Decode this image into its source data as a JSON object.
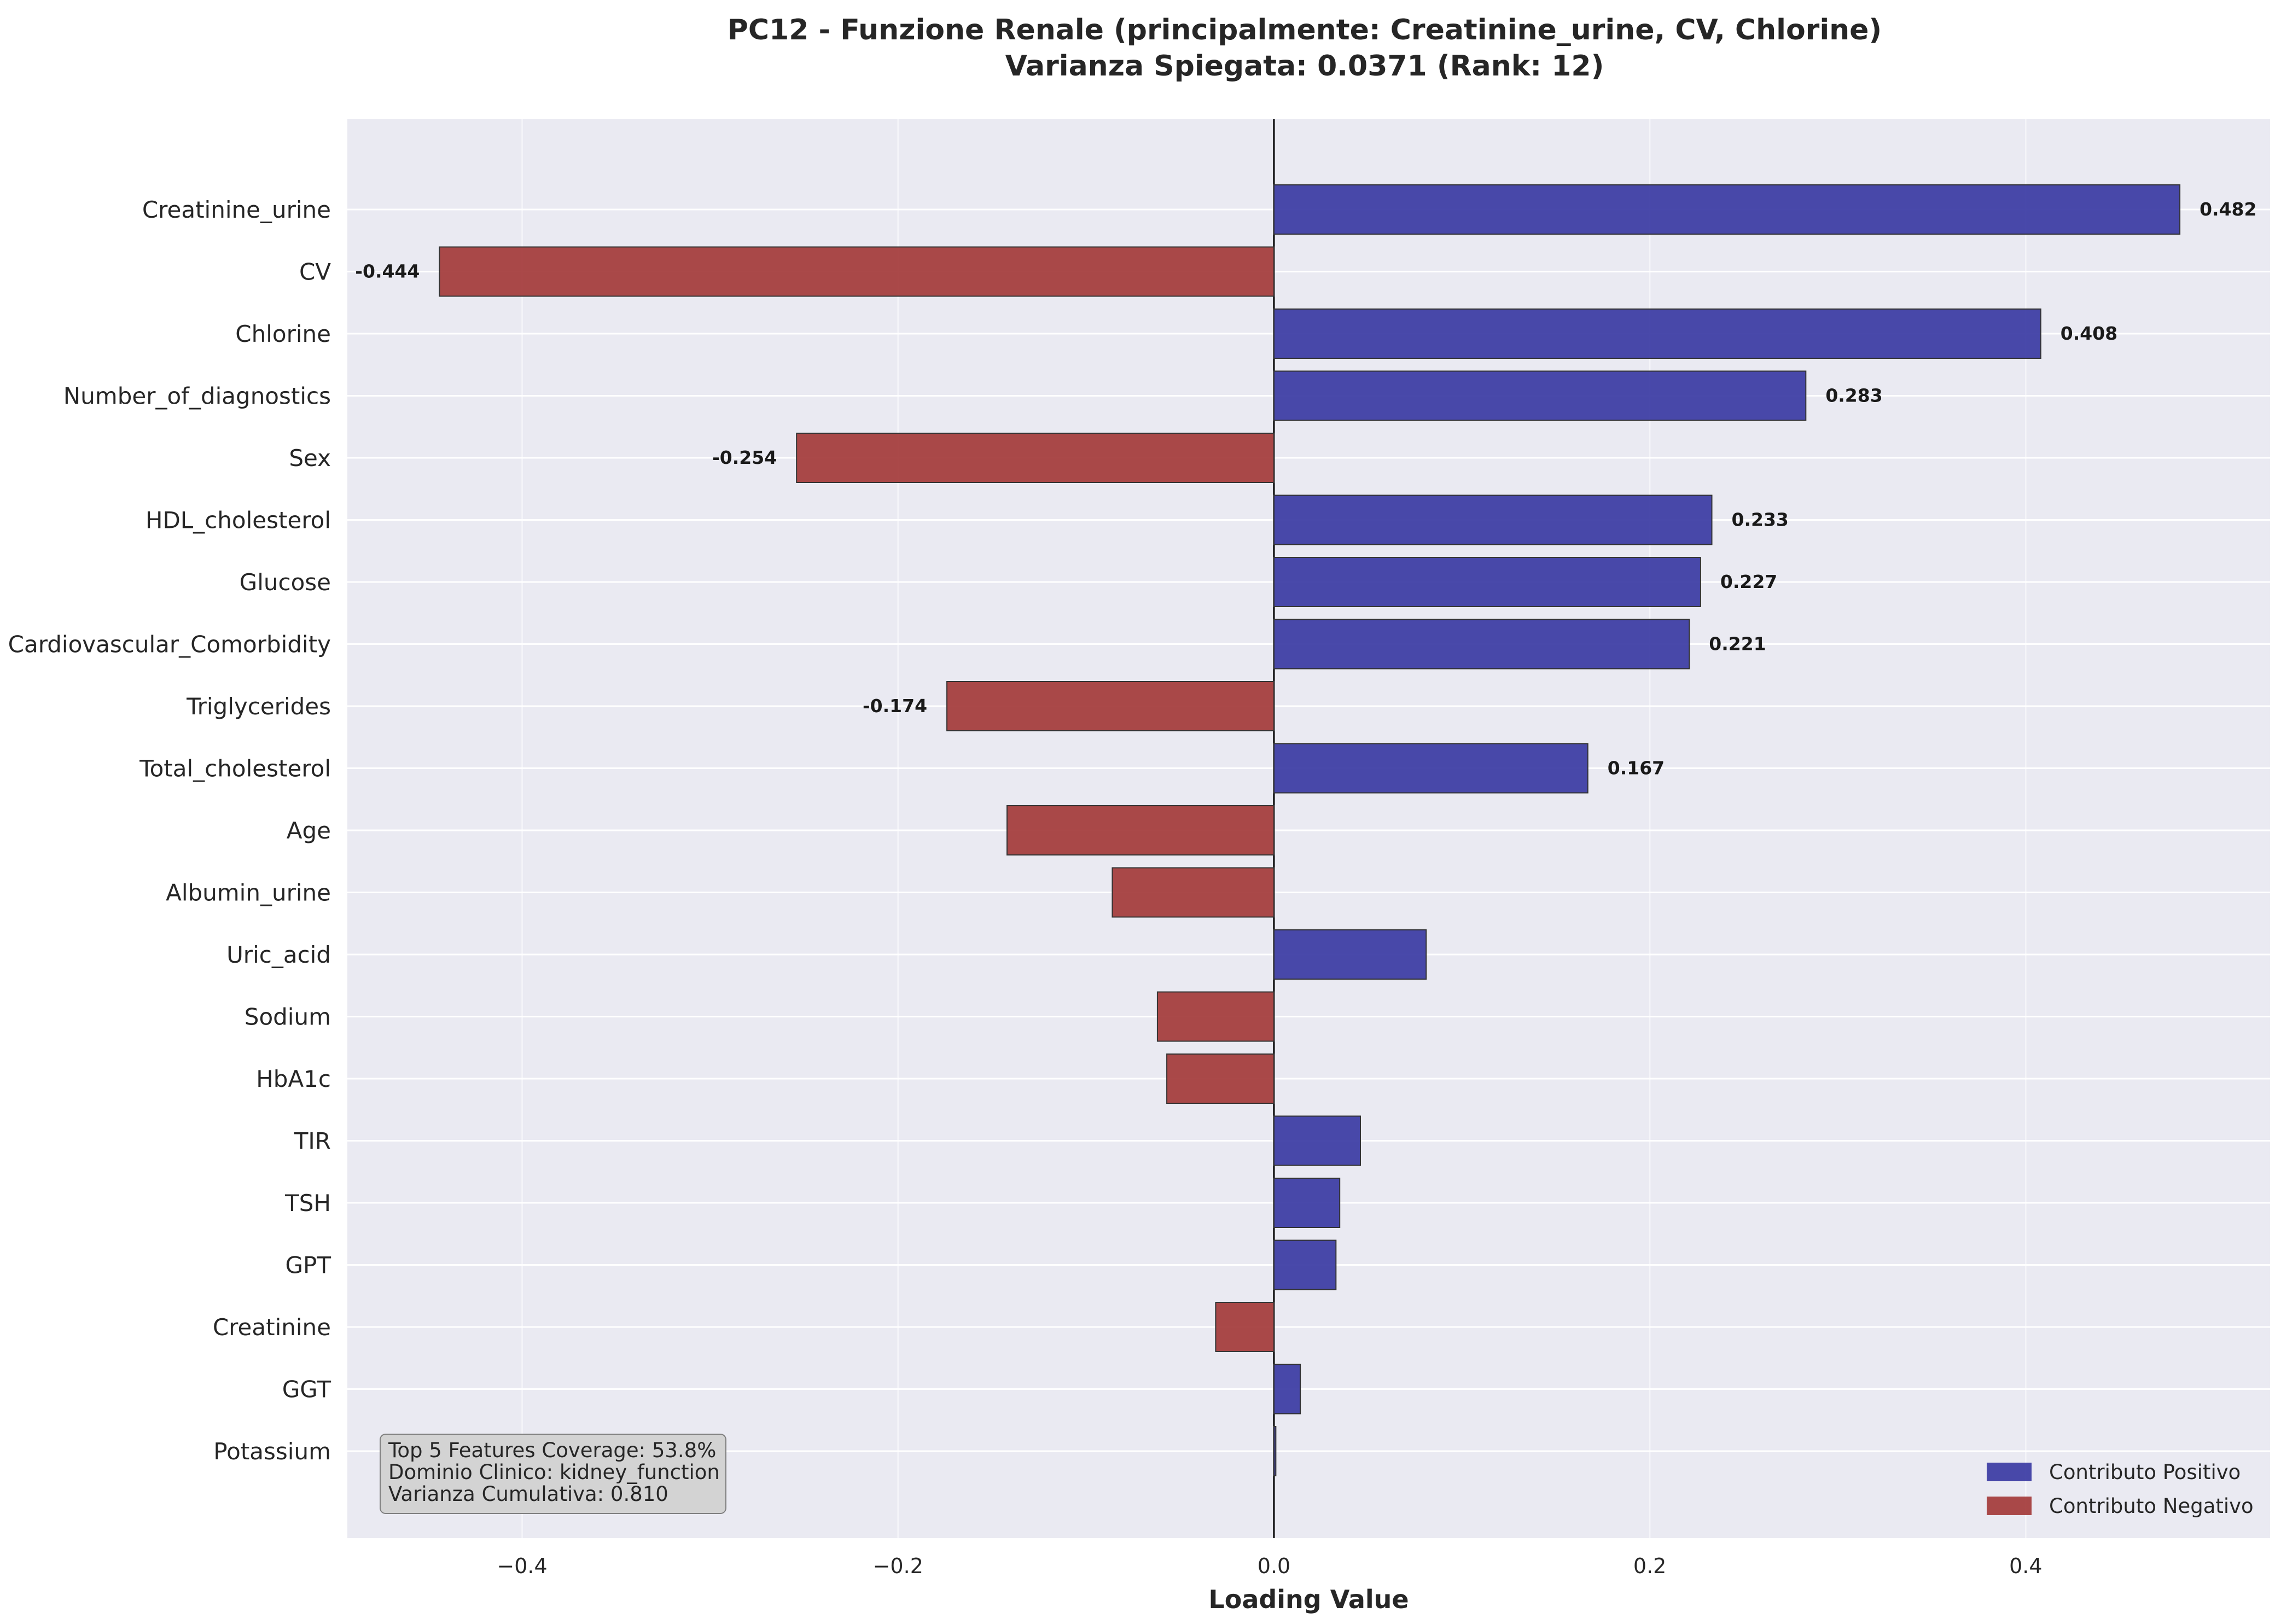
{
  "chart_data": {
    "type": "bar",
    "orientation": "horizontal",
    "title": "PC12 - Funzione Renale (principalmente: Creatinine_urine, CV, Chlorine)",
    "subtitle": "Varianza Spiegata: 0.0371 (Rank: 12)",
    "xlabel": "Loading Value",
    "ylabel": "",
    "xlim": [
      -0.493,
      0.53
    ],
    "xticks": [
      "−0.4",
      "−0.2",
      "0.0",
      "0.2",
      "0.4"
    ],
    "xtick_values": [
      -0.4,
      -0.2,
      0.0,
      0.2,
      0.4
    ],
    "grid": true,
    "categories": [
      "Creatinine_urine",
      "CV",
      "Chlorine",
      "Number_of_diagnostics",
      "Sex",
      "HDL_cholesterol",
      "Glucose",
      "Cardiovascular_Comorbidity",
      "Triglycerides",
      "Total_cholesterol",
      "Age",
      "Albumin_urine",
      "Uric_acid",
      "Sodium",
      "HbA1c",
      "TIR",
      "TSH",
      "GPT",
      "Creatinine",
      "GGT",
      "Potassium"
    ],
    "values": [
      0.482,
      -0.444,
      0.408,
      0.283,
      -0.254,
      0.233,
      0.227,
      0.221,
      -0.174,
      0.167,
      -0.142,
      -0.086,
      0.081,
      -0.062,
      -0.057,
      0.046,
      0.035,
      0.033,
      -0.031,
      0.014,
      0.001
    ],
    "value_labels": [
      "0.482",
      "-0.444",
      "0.408",
      "0.283",
      "-0.254",
      "0.233",
      "0.227",
      "0.221",
      "-0.174",
      "0.167",
      "",
      "",
      "",
      "",
      "",
      "",
      "",
      "",
      "",
      "",
      ""
    ],
    "colors": {
      "positive": "#3a3aa3",
      "negative": "#a33a3a"
    },
    "legend": {
      "placement": "lower-right",
      "entries": [
        {
          "label": "Contributo Positivo",
          "color": "#3a3aa3"
        },
        {
          "label": "Contributo Negativo",
          "color": "#a33a3a"
        }
      ]
    },
    "annotation": {
      "lines": [
        "Top 5 Features Coverage: 53.8%",
        "Dominio Clinico: kidney_function",
        "Varianza Cumulativa: 0.810"
      ]
    }
  }
}
